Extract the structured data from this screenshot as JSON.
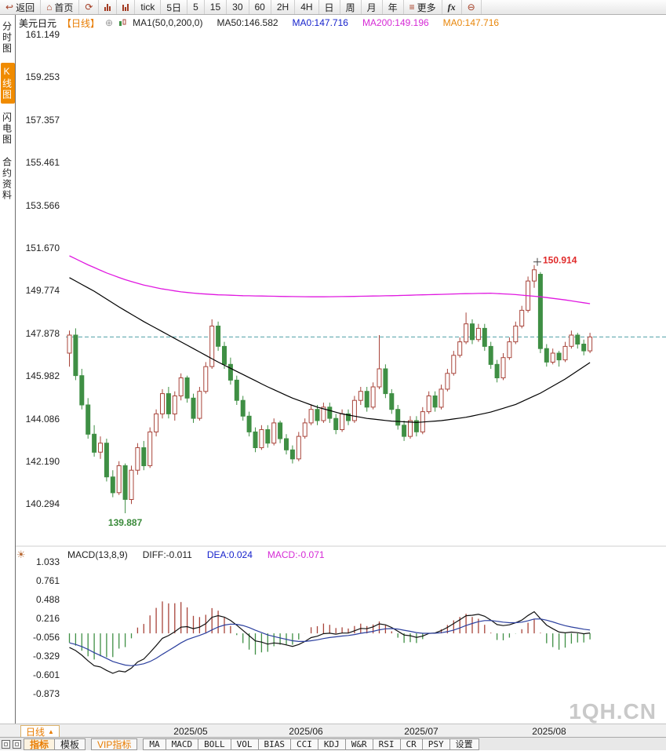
{
  "icons": {
    "back": "↩",
    "home": "⌂",
    "refresh": "⟳",
    "menu": "≡",
    "zoom_out": "⊖",
    "expand": "⊕",
    "settings": "☀",
    "up_arrow": "▲"
  },
  "toolbar": {
    "items": [
      {
        "name": "back-button",
        "label": "返回",
        "icon": "back"
      },
      {
        "name": "home-button",
        "label": "首页",
        "icon": "home"
      },
      {
        "name": "refresh-button",
        "label": "",
        "icon": "refresh"
      },
      {
        "name": "chart-style-1-button",
        "label": "",
        "icon": "bars1"
      },
      {
        "name": "chart-style-2-button",
        "label": "",
        "icon": "bars2"
      },
      {
        "name": "period-tick-button",
        "label": "tick"
      },
      {
        "name": "period-5day-button",
        "label": "5日"
      },
      {
        "name": "period-5min-button",
        "label": "5"
      },
      {
        "name": "period-15min-button",
        "label": "15"
      },
      {
        "name": "period-30min-button",
        "label": "30"
      },
      {
        "name": "period-60min-button",
        "label": "60"
      },
      {
        "name": "period-2h-button",
        "label": "2H"
      },
      {
        "name": "period-4h-button",
        "label": "4H"
      },
      {
        "name": "period-day-button",
        "label": "日"
      },
      {
        "name": "period-week-button",
        "label": "周"
      },
      {
        "name": "period-month-button",
        "label": "月"
      },
      {
        "name": "period-year-button",
        "label": "年"
      },
      {
        "name": "more-button",
        "label": "更多",
        "icon": "menu"
      },
      {
        "name": "formula-button",
        "label": "fx",
        "style": "fx"
      },
      {
        "name": "zoom-out-button",
        "label": "",
        "icon": "zoom_out"
      }
    ]
  },
  "sidebar": {
    "items": [
      {
        "name": "sidebar-item-time-chart",
        "label": "分时图",
        "selected": false
      },
      {
        "name": "sidebar-item-kline-chart",
        "label": "K线图",
        "selected": true
      },
      {
        "name": "sidebar-item-lightning-chart",
        "label": "闪电图",
        "selected": false
      },
      {
        "name": "sidebar-item-contract-info",
        "label": "合约资料",
        "selected": false
      }
    ]
  },
  "chart_header": {
    "symbol": "美元日元",
    "period": "【日线】",
    "ma_items": [
      {
        "text": "MA1(50,0,200,0)",
        "color": "#222222"
      },
      {
        "text": "MA50:146.582",
        "color": "#222222"
      },
      {
        "text": "MA0:147.716",
        "color": "#1622cc"
      },
      {
        "text": "MA200:149.196",
        "color": "#d62ad6"
      },
      {
        "text": "MA0:147.716",
        "color": "#e8860a"
      }
    ]
  },
  "macd_header": {
    "items": [
      {
        "text": "MACD(13,8,9)",
        "color": "#222222"
      },
      {
        "text": "DIFF:-0.011",
        "color": "#222222"
      },
      {
        "text": "DEA:0.024",
        "color": "#1622cc"
      },
      {
        "text": "MACD:-0.071",
        "color": "#d62ad6"
      }
    ]
  },
  "watermark": "1QH.CN",
  "bottom": {
    "period_label": "日线",
    "dates": [
      "2025/05",
      "2025/06",
      "2025/07",
      "2025/08"
    ],
    "tabs": [
      {
        "name": "indicator-tab",
        "label": "指标",
        "style": "selected"
      },
      {
        "name": "template-tab",
        "label": "模板",
        "style": ""
      },
      {
        "name": "vip-indicator-tab",
        "label": "VIP指标",
        "style": "vip gap"
      },
      {
        "name": "ma-tab",
        "label": "MA",
        "style": "mono gap"
      },
      {
        "name": "macd-tab",
        "label": "MACD",
        "style": "mono"
      },
      {
        "name": "boll-tab",
        "label": "BOLL",
        "style": "mono"
      },
      {
        "name": "vol-tab",
        "label": "VOL",
        "style": "mono"
      },
      {
        "name": "bias-tab",
        "label": "BIAS",
        "style": "mono"
      },
      {
        "name": "cci-tab",
        "label": "CCI",
        "style": "mono"
      },
      {
        "name": "kdj-tab",
        "label": "KDJ",
        "style": "mono"
      },
      {
        "name": "wr-tab",
        "label": "W&R",
        "style": "mono"
      },
      {
        "name": "rsi-tab",
        "label": "RSI",
        "style": "mono"
      },
      {
        "name": "cr-tab",
        "label": "CR",
        "style": "mono"
      },
      {
        "name": "psy-tab",
        "label": "PSY",
        "style": "mono"
      },
      {
        "name": "settings-tab",
        "label": "设置",
        "style": "cn-small"
      }
    ]
  },
  "chart_data": [
    {
      "type": "candlestick",
      "symbol": "美元日元",
      "period": "日线",
      "y_ticks": [
        161.149,
        159.253,
        157.357,
        155.461,
        153.566,
        151.67,
        149.774,
        147.878,
        145.982,
        144.086,
        142.19,
        140.294
      ],
      "x_labels": [
        "2025/05",
        "2025/06",
        "2025/07",
        "2025/08"
      ],
      "last_price": 147.716,
      "high_annotation": {
        "index": 75,
        "value": 150.914
      },
      "low_annotation": {
        "index": 9,
        "value": 139.887
      },
      "colors": {
        "up": "#a8443a",
        "down": "#3f8f44",
        "ma50": "#000000",
        "ma200": "#e018e0",
        "last_price_line": "#4fa0a8",
        "high_label": "#e02a2a",
        "low_label": "#3a8a3a"
      },
      "candles": [
        [
          147.0,
          148.0,
          146.4,
          147.8
        ],
        [
          147.8,
          148.1,
          145.8,
          146.0
        ],
        [
          146.0,
          146.3,
          144.5,
          144.7
        ],
        [
          144.7,
          145.0,
          143.2,
          143.4
        ],
        [
          143.4,
          143.8,
          142.4,
          142.6
        ],
        [
          142.6,
          143.3,
          142.3,
          143.0
        ],
        [
          143.0,
          143.2,
          141.3,
          141.5
        ],
        [
          141.5,
          141.8,
          140.6,
          140.8
        ],
        [
          140.8,
          142.2,
          140.7,
          142.0
        ],
        [
          142.0,
          142.1,
          139.887,
          140.5
        ],
        [
          140.5,
          142.0,
          140.3,
          141.8
        ],
        [
          141.8,
          143.0,
          141.6,
          142.8
        ],
        [
          142.8,
          143.1,
          141.8,
          142.0
        ],
        [
          142.0,
          143.7,
          141.9,
          143.5
        ],
        [
          143.5,
          144.5,
          143.3,
          144.3
        ],
        [
          144.3,
          145.4,
          144.1,
          145.2
        ],
        [
          145.2,
          145.5,
          144.1,
          144.3
        ],
        [
          144.3,
          145.3,
          144.0,
          145.1
        ],
        [
          145.1,
          146.1,
          144.9,
          145.9
        ],
        [
          145.9,
          146.0,
          144.8,
          145.0
        ],
        [
          145.0,
          145.2,
          143.9,
          144.1
        ],
        [
          144.1,
          145.5,
          144.0,
          145.3
        ],
        [
          145.3,
          146.6,
          145.2,
          146.4
        ],
        [
          146.4,
          148.5,
          146.3,
          148.2
        ],
        [
          148.2,
          148.4,
          147.1,
          147.3
        ],
        [
          147.3,
          147.5,
          146.3,
          146.5
        ],
        [
          146.5,
          146.8,
          145.6,
          145.8
        ],
        [
          145.8,
          146.0,
          144.7,
          144.9
        ],
        [
          144.9,
          145.1,
          144.0,
          144.2
        ],
        [
          144.2,
          144.4,
          143.3,
          143.5
        ],
        [
          143.5,
          143.7,
          142.6,
          142.8
        ],
        [
          142.8,
          143.8,
          142.7,
          143.6
        ],
        [
          143.6,
          143.8,
          142.8,
          143.0
        ],
        [
          143.0,
          144.1,
          142.9,
          143.9
        ],
        [
          143.9,
          144.0,
          143.0,
          143.2
        ],
        [
          143.2,
          143.4,
          142.5,
          142.7
        ],
        [
          142.7,
          142.9,
          142.1,
          142.3
        ],
        [
          142.3,
          143.5,
          142.2,
          143.3
        ],
        [
          143.3,
          144.1,
          143.2,
          143.9
        ],
        [
          143.9,
          144.7,
          143.8,
          144.5
        ],
        [
          144.5,
          144.7,
          143.8,
          144.0
        ],
        [
          144.0,
          144.8,
          143.9,
          144.6
        ],
        [
          144.6,
          144.8,
          143.9,
          144.1
        ],
        [
          144.1,
          144.3,
          143.4,
          143.6
        ],
        [
          143.6,
          144.5,
          143.5,
          144.3
        ],
        [
          144.3,
          144.5,
          143.8,
          144.0
        ],
        [
          144.0,
          145.1,
          143.9,
          144.9
        ],
        [
          144.9,
          145.5,
          144.7,
          145.3
        ],
        [
          145.3,
          145.5,
          144.4,
          144.6
        ],
        [
          144.6,
          145.7,
          144.5,
          145.5
        ],
        [
          145.5,
          147.8,
          145.4,
          146.3
        ],
        [
          146.3,
          146.5,
          145.0,
          145.2
        ],
        [
          145.2,
          145.4,
          144.3,
          144.5
        ],
        [
          144.5,
          144.7,
          143.6,
          143.8
        ],
        [
          143.8,
          144.0,
          143.1,
          143.3
        ],
        [
          143.3,
          144.2,
          143.2,
          144.0
        ],
        [
          144.0,
          144.2,
          143.3,
          143.5
        ],
        [
          143.5,
          144.6,
          143.4,
          144.4
        ],
        [
          144.4,
          145.3,
          144.3,
          145.1
        ],
        [
          145.1,
          145.3,
          144.4,
          144.6
        ],
        [
          144.6,
          145.6,
          144.5,
          145.4
        ],
        [
          145.4,
          146.3,
          145.3,
          146.1
        ],
        [
          146.1,
          147.1,
          146.0,
          146.9
        ],
        [
          146.9,
          147.7,
          146.8,
          147.5
        ],
        [
          147.5,
          148.8,
          147.4,
          148.3
        ],
        [
          148.3,
          148.5,
          147.4,
          147.6
        ],
        [
          147.6,
          148.3,
          147.5,
          148.1
        ],
        [
          148.1,
          148.3,
          147.1,
          147.3
        ],
        [
          147.3,
          147.5,
          146.3,
          146.5
        ],
        [
          146.5,
          146.7,
          145.7,
          145.9
        ],
        [
          145.9,
          147.0,
          145.8,
          146.8
        ],
        [
          146.8,
          147.7,
          146.7,
          147.5
        ],
        [
          147.5,
          148.4,
          147.4,
          148.2
        ],
        [
          148.2,
          149.1,
          148.1,
          148.9
        ],
        [
          148.9,
          150.4,
          148.8,
          150.2
        ],
        [
          150.2,
          150.914,
          149.9,
          150.7
        ],
        [
          150.5,
          150.6,
          147.0,
          147.2
        ],
        [
          147.2,
          147.4,
          146.4,
          146.6
        ],
        [
          146.6,
          147.2,
          146.5,
          147.0
        ],
        [
          147.0,
          147.1,
          146.4,
          146.7
        ],
        [
          146.7,
          147.5,
          146.6,
          147.3
        ],
        [
          147.3,
          148.0,
          147.2,
          147.8
        ],
        [
          147.8,
          147.9,
          147.2,
          147.4
        ],
        [
          147.4,
          147.6,
          146.9,
          147.1
        ],
        [
          147.1,
          147.9,
          147.0,
          147.716
        ]
      ],
      "ma50_points": [
        [
          0,
          150.35
        ],
        [
          4,
          149.75
        ],
        [
          8,
          149.05
        ],
        [
          12,
          148.4
        ],
        [
          16,
          147.8
        ],
        [
          20,
          147.2
        ],
        [
          24,
          146.6
        ],
        [
          28,
          146.05
        ],
        [
          32,
          145.5
        ],
        [
          36,
          145.0
        ],
        [
          40,
          144.6
        ],
        [
          44,
          144.3
        ],
        [
          48,
          144.1
        ],
        [
          52,
          143.98
        ],
        [
          56,
          143.92
        ],
        [
          60,
          144.0
        ],
        [
          64,
          144.15
        ],
        [
          68,
          144.38
        ],
        [
          72,
          144.72
        ],
        [
          76,
          145.22
        ],
        [
          80,
          145.85
        ],
        [
          84,
          146.582
        ]
      ],
      "ma200_points": [
        [
          0,
          151.32
        ],
        [
          3,
          150.92
        ],
        [
          6,
          150.56
        ],
        [
          9,
          150.26
        ],
        [
          12,
          150.02
        ],
        [
          15,
          149.85
        ],
        [
          18,
          149.72
        ],
        [
          21,
          149.64
        ],
        [
          24,
          149.59
        ],
        [
          28,
          149.55
        ],
        [
          32,
          149.53
        ],
        [
          36,
          149.51
        ],
        [
          40,
          149.5
        ],
        [
          44,
          149.51
        ],
        [
          48,
          149.53
        ],
        [
          52,
          149.55
        ],
        [
          56,
          149.58
        ],
        [
          60,
          149.61
        ],
        [
          64,
          149.64
        ],
        [
          68,
          149.66
        ],
        [
          72,
          149.6
        ],
        [
          76,
          149.5
        ],
        [
          80,
          149.36
        ],
        [
          84,
          149.196
        ]
      ]
    },
    {
      "type": "macd",
      "params": [
        13,
        8,
        9
      ],
      "diff": -0.011,
      "dea": 0.024,
      "macd": -0.071,
      "y_ticks": [
        1.033,
        0.761,
        0.488,
        0.216,
        -0.056,
        -0.329,
        -0.601,
        -0.873
      ],
      "colors": {
        "diff_line": "#111111",
        "dea_line": "#2b3f9e",
        "bar_up": "#a8443a",
        "bar_down": "#3f8f44"
      },
      "sim": {
        "seed_ema8": 148.1,
        "seed_ema13": 148.6,
        "seed_dea": -0.12,
        "scale": 0.45
      }
    }
  ]
}
